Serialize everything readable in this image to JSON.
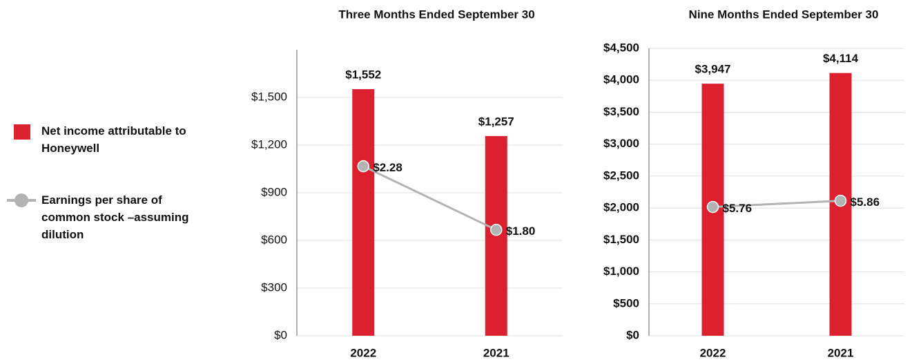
{
  "chart_data": [
    {
      "type": "bar",
      "title": "Three Months Ended September 30",
      "categories": [
        "2022",
        "2021"
      ],
      "series": [
        {
          "name": "Net income attributable to Honeywell",
          "type": "bar",
          "color": "#dc202e",
          "values": [
            1552,
            1257
          ],
          "value_labels": [
            "$1,552",
            "$1,257"
          ]
        },
        {
          "name": "Earnings per share of common stock –assuming dilution",
          "type": "line",
          "axis": "y2",
          "color": "#b3b3b3",
          "values": [
            2.28,
            1.8
          ],
          "value_labels": [
            "$2.28",
            "$1.80"
          ]
        }
      ],
      "ylim": [
        0,
        1800
      ],
      "yticks": [
        {
          "value": 0,
          "label": "$0"
        },
        {
          "value": 300,
          "label": "$300"
        },
        {
          "value": 600,
          "label": "$600"
        },
        {
          "value": 900,
          "label": "$900"
        },
        {
          "value": 1200,
          "label": "$1,200"
        },
        {
          "value": 1500,
          "label": "$1,500"
        }
      ],
      "y2lim": [
        1.0,
        3.16
      ],
      "grid": true,
      "tick_bold": false
    },
    {
      "type": "bar",
      "title": "Nine Months Ended September 30",
      "categories": [
        "2022",
        "2021"
      ],
      "series": [
        {
          "name": "Net income attributable to Honeywell",
          "type": "bar",
          "color": "#dc202e",
          "values": [
            3947,
            4114
          ],
          "value_labels": [
            "$3,947",
            "$4,114"
          ]
        },
        {
          "name": "Earnings per share of common stock –assuming dilution",
          "type": "line",
          "axis": "y2",
          "color": "#b3b3b3",
          "values": [
            5.76,
            5.86
          ],
          "value_labels": [
            "$5.76",
            "$5.86"
          ]
        }
      ],
      "ylim": [
        0,
        4500
      ],
      "yticks": [
        {
          "value": 0,
          "label": "$0"
        },
        {
          "value": 500,
          "label": "$500"
        },
        {
          "value": 1000,
          "label": "$1,000"
        },
        {
          "value": 1500,
          "label": "$1,500"
        },
        {
          "value": 2000,
          "label": "$2,000"
        },
        {
          "value": 2500,
          "label": "$2,500"
        },
        {
          "value": 3000,
          "label": "$3,000"
        },
        {
          "value": 3500,
          "label": "$3,500"
        },
        {
          "value": 4000,
          "label": "$4,000"
        },
        {
          "value": 4500,
          "label": "$4,500"
        }
      ],
      "y2lim": [
        3.69,
        8.31
      ],
      "grid": true,
      "tick_bold": true
    }
  ]
}
